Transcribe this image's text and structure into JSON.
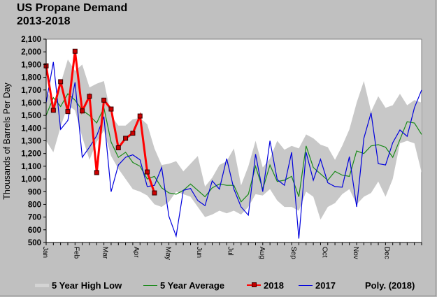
{
  "chart_data": {
    "type": "line",
    "title": "US Propane Demand",
    "subtitle": "2013-2018",
    "xlabel": "",
    "ylabel": "Thousands of Barrels Per Day",
    "ylim": [
      500,
      2100
    ],
    "yticks": [
      500,
      600,
      700,
      800,
      900,
      1000,
      1100,
      1200,
      1300,
      1400,
      1500,
      1600,
      1700,
      1800,
      1900,
      2000,
      2100
    ],
    "ytick_labels": [
      "500",
      "600",
      "700",
      "800",
      "900",
      "1,000",
      "1,100",
      "1,200",
      "1,300",
      "1,400",
      "1,500",
      "1,600",
      "1,700",
      "1,800",
      "1,900",
      "2,000",
      "2,100"
    ],
    "x_unit": "week",
    "x_range": [
      0,
      52
    ],
    "month_labels": [
      {
        "label": "Jan",
        "week": 0
      },
      {
        "label": "Feb",
        "week": 4.3
      },
      {
        "label": "Mar",
        "week": 8.3
      },
      {
        "label": "Apr",
        "week": 12.6
      },
      {
        "label": "May",
        "week": 17
      },
      {
        "label": "Jun",
        "week": 21.3
      },
      {
        "label": "Jul",
        "week": 25.6
      },
      {
        "label": "Aug",
        "week": 30
      },
      {
        "label": "Sep",
        "week": 34.4
      },
      {
        "label": "Oct",
        "week": 38.7
      },
      {
        "label": "Nov",
        "week": 43
      },
      {
        "label": "Dec",
        "week": 47.3
      }
    ],
    "band": {
      "name": "5 Year High Low",
      "color": "#c8c8c8",
      "high": [
        1700,
        1600,
        1750,
        1940,
        1850,
        1900,
        1720,
        1750,
        1770,
        1500,
        1420,
        1420,
        1470,
        1480,
        1430,
        1240,
        1110,
        1120,
        1140,
        1060,
        1120,
        1180,
        940,
        1010,
        1110,
        1140,
        1240,
        950,
        1100,
        1300,
        1090,
        1160,
        1300,
        1230,
        1260,
        1240,
        1350,
        1320,
        1270,
        1250,
        1150,
        1260,
        1390,
        1600,
        1770,
        1530,
        1650,
        1560,
        1580,
        1670,
        1580,
        1620,
        1600
      ],
      "low": [
        1300,
        1210,
        1410,
        1580,
        1540,
        1330,
        1150,
        1290,
        1380,
        1180,
        1080,
        1000,
        920,
        900,
        870,
        800,
        780,
        820,
        900,
        880,
        860,
        780,
        700,
        720,
        750,
        730,
        750,
        720,
        780,
        880,
        870,
        920,
        830,
        780,
        780,
        750,
        900,
        860,
        680,
        780,
        810,
        880,
        920,
        800,
        860,
        890,
        980,
        860,
        1000,
        1280,
        1300,
        1280,
        1050
      ]
    },
    "series": [
      {
        "name": "5 Year Average",
        "color": "#1a8a1a",
        "values": [
          1500,
          1640,
          1570,
          1670,
          1620,
          1540,
          1500,
          1440,
          1560,
          1290,
          1170,
          1210,
          1130,
          1100,
          1000,
          1020,
          930,
          890,
          880,
          910,
          960,
          910,
          860,
          930,
          960,
          950,
          950,
          820,
          880,
          1100,
          920,
          1110,
          980,
          990,
          1020,
          860,
          1260,
          1090,
          1040,
          990,
          1060,
          1030,
          1020,
          1220,
          1200,
          1260,
          1270,
          1250,
          1170,
          1310,
          1450,
          1440,
          1350
        ]
      },
      {
        "name": "2018",
        "color": "#ff0000",
        "marker": "square",
        "values": [
          1890,
          1540,
          1765,
          1530,
          2005,
          1535,
          1650,
          1050,
          1620,
          1550,
          1245,
          1320,
          1360,
          1495,
          1055,
          890
        ]
      },
      {
        "name": "2017",
        "color": "#0000dd",
        "values": [
          1600,
          1920,
          1390,
          1460,
          1760,
          1170,
          1250,
          1340,
          1490,
          900,
          1110,
          1170,
          1190,
          1150,
          940,
          950,
          1090,
          705,
          550,
          910,
          925,
          830,
          790,
          985,
          920,
          1160,
          920,
          780,
          715,
          1195,
          900,
          1300,
          995,
          950,
          1210,
          530,
          1210,
          990,
          1155,
          970,
          940,
          935,
          1175,
          780,
          1320,
          1520,
          1120,
          1110,
          1285,
          1385,
          1335,
          1560,
          1700
        ]
      },
      {
        "name": "Poly. (2018)",
        "color": "#000000",
        "values": []
      }
    ],
    "legend": [
      "5 Year High Low",
      "5 Year Average",
      "2018",
      "2017",
      "Poly. (2018)"
    ],
    "legend_position": "bottom",
    "grid": false
  }
}
